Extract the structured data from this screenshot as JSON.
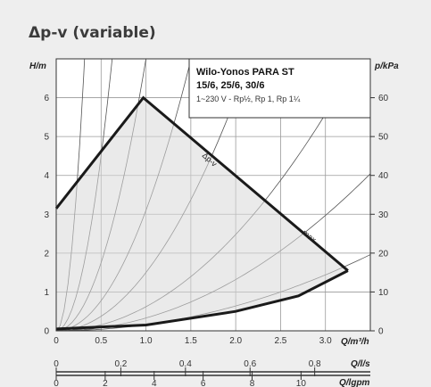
{
  "title": "Δp-v (variable)",
  "chart_data": {
    "type": "line",
    "title": "Δp-v (variable)",
    "legend": {
      "product": "Wilo-Yonos PARA ST",
      "models": "15/6, 25/6, 30/6",
      "specs": "1~230 V - Rp½, Rp 1, Rp 1¼"
    },
    "y_left": {
      "label": "H/m",
      "ticks": [
        "0",
        "1",
        "2",
        "3",
        "4",
        "5",
        "6"
      ],
      "range": [
        0,
        7
      ]
    },
    "y_right": {
      "label": "p/kPa",
      "ticks": [
        "0",
        "10",
        "20",
        "30",
        "40",
        "50",
        "60"
      ],
      "range": [
        0,
        70
      ]
    },
    "x_primary": {
      "label": "Q/m³/h",
      "ticks": [
        "0",
        "0.5",
        "1.0",
        "1.5",
        "2.0",
        "2.5",
        "3.0"
      ],
      "range": [
        0,
        3.5
      ]
    },
    "x_secondary_ls": {
      "label": "Q/l/s",
      "ticks": [
        "0",
        "0.2",
        "0.4",
        "0.6",
        "0.8"
      ]
    },
    "x_secondary_gpm": {
      "label": "Q/lgpm",
      "ticks": [
        "0",
        "2",
        "4",
        "6",
        "8",
        "10"
      ]
    },
    "annotations": {
      "dpv": "Δp-v",
      "max": "max."
    },
    "grid": true,
    "series": [
      {
        "curve": "max",
        "x": [
          0,
          0.97,
          3.25
        ],
        "y": [
          3.15,
          6.0,
          1.55
        ]
      },
      {
        "curve": "min",
        "x": [
          0,
          1.0,
          2.0,
          2.7,
          3.25
        ],
        "y": [
          0.05,
          0.15,
          0.5,
          0.9,
          1.55
        ]
      }
    ],
    "system_curves_k": [
      70,
      18,
      7,
      3.1,
      1.5,
      0.62,
      0.33,
      0.16
    ]
  }
}
